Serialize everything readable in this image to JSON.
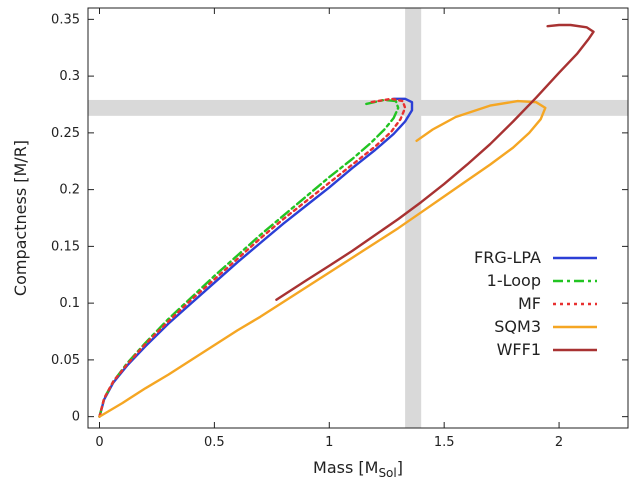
{
  "chart_data": {
    "type": "line",
    "xlabel": "Mass [M",
    "xlabel_sub": "Sol",
    "xlabel_end": "]",
    "ylabel": "Compactness [M/R]",
    "xlim": [
      -0.05,
      2.3
    ],
    "ylim": [
      -0.01,
      0.36
    ],
    "xticks": [
      {
        "v": 0,
        "label": "0"
      },
      {
        "v": 0.5,
        "label": "0.5"
      },
      {
        "v": 1,
        "label": "1"
      },
      {
        "v": 1.5,
        "label": "1.5"
      },
      {
        "v": 2,
        "label": "2"
      }
    ],
    "yticks": [
      {
        "v": 0,
        "label": "0"
      },
      {
        "v": 0.05,
        "label": "0.05"
      },
      {
        "v": 0.1,
        "label": "0.1"
      },
      {
        "v": 0.15,
        "label": "0.15"
      },
      {
        "v": 0.2,
        "label": "0.2"
      },
      {
        "v": 0.25,
        "label": "0.25"
      },
      {
        "v": 0.3,
        "label": "0.3"
      },
      {
        "v": 0.35,
        "label": "0.35"
      }
    ],
    "grid": false,
    "legend_position": "bottom-right",
    "bands": {
      "vertical": {
        "x": [
          1.33,
          1.4
        ],
        "color": "#d9d9d9"
      },
      "horizontal": {
        "y": [
          0.265,
          0.279
        ],
        "color": "#d9d9d9"
      }
    },
    "series": [
      {
        "name": "FRG-LPA",
        "color": "#2b3fd6",
        "dash": "solid",
        "points": [
          [
            0,
            0
          ],
          [
            0.02,
            0.015
          ],
          [
            0.06,
            0.03
          ],
          [
            0.12,
            0.045
          ],
          [
            0.2,
            0.062
          ],
          [
            0.3,
            0.082
          ],
          [
            0.4,
            0.1
          ],
          [
            0.5,
            0.118
          ],
          [
            0.6,
            0.136
          ],
          [
            0.7,
            0.153
          ],
          [
            0.8,
            0.17
          ],
          [
            0.9,
            0.186
          ],
          [
            1.0,
            0.202
          ],
          [
            1.1,
            0.219
          ],
          [
            1.2,
            0.235
          ],
          [
            1.28,
            0.249
          ],
          [
            1.33,
            0.26
          ],
          [
            1.36,
            0.27
          ],
          [
            1.36,
            0.277
          ],
          [
            1.33,
            0.28
          ],
          [
            1.28,
            0.28
          ]
        ]
      },
      {
        "name": "1-Loop",
        "color": "#22c422",
        "dash": "dashdot",
        "points": [
          [
            0,
            0
          ],
          [
            0.02,
            0.016
          ],
          [
            0.06,
            0.031
          ],
          [
            0.12,
            0.047
          ],
          [
            0.2,
            0.065
          ],
          [
            0.3,
            0.086
          ],
          [
            0.4,
            0.105
          ],
          [
            0.5,
            0.124
          ],
          [
            0.6,
            0.142
          ],
          [
            0.7,
            0.16
          ],
          [
            0.8,
            0.177
          ],
          [
            0.9,
            0.194
          ],
          [
            1.0,
            0.211
          ],
          [
            1.1,
            0.227
          ],
          [
            1.18,
            0.241
          ],
          [
            1.24,
            0.253
          ],
          [
            1.28,
            0.263
          ],
          [
            1.3,
            0.272
          ],
          [
            1.29,
            0.278
          ],
          [
            1.24,
            0.279
          ],
          [
            1.15,
            0.275
          ]
        ]
      },
      {
        "name": "MF",
        "color": "#e83030",
        "dash": "dotted",
        "points": [
          [
            0,
            0
          ],
          [
            0.02,
            0.016
          ],
          [
            0.06,
            0.031
          ],
          [
            0.12,
            0.046
          ],
          [
            0.2,
            0.064
          ],
          [
            0.3,
            0.084
          ],
          [
            0.4,
            0.103
          ],
          [
            0.5,
            0.121
          ],
          [
            0.6,
            0.139
          ],
          [
            0.7,
            0.157
          ],
          [
            0.8,
            0.174
          ],
          [
            0.9,
            0.19
          ],
          [
            1.0,
            0.206
          ],
          [
            1.1,
            0.222
          ],
          [
            1.2,
            0.238
          ],
          [
            1.27,
            0.251
          ],
          [
            1.31,
            0.262
          ],
          [
            1.33,
            0.272
          ],
          [
            1.32,
            0.278
          ],
          [
            1.27,
            0.28
          ],
          [
            1.18,
            0.277
          ]
        ]
      },
      {
        "name": "SQM3",
        "color": "#f5a623",
        "dash": "solid",
        "points": [
          [
            0,
            0
          ],
          [
            0.1,
            0.012
          ],
          [
            0.2,
            0.025
          ],
          [
            0.3,
            0.037
          ],
          [
            0.4,
            0.05
          ],
          [
            0.5,
            0.063
          ],
          [
            0.6,
            0.076
          ],
          [
            0.7,
            0.088
          ],
          [
            0.8,
            0.101
          ],
          [
            0.9,
            0.114
          ],
          [
            1.0,
            0.127
          ],
          [
            1.1,
            0.14
          ],
          [
            1.2,
            0.153
          ],
          [
            1.3,
            0.166
          ],
          [
            1.4,
            0.18
          ],
          [
            1.5,
            0.194
          ],
          [
            1.6,
            0.208
          ],
          [
            1.7,
            0.222
          ],
          [
            1.8,
            0.237
          ],
          [
            1.87,
            0.25
          ],
          [
            1.92,
            0.262
          ],
          [
            1.94,
            0.272
          ],
          [
            1.9,
            0.277
          ],
          [
            1.82,
            0.278
          ],
          [
            1.7,
            0.274
          ],
          [
            1.55,
            0.264
          ],
          [
            1.45,
            0.253
          ],
          [
            1.38,
            0.243
          ]
        ]
      },
      {
        "name": "WFF1",
        "color": "#a83232",
        "dash": "solid",
        "points": [
          [
            0.77,
            0.103
          ],
          [
            0.9,
            0.12
          ],
          [
            1.0,
            0.133
          ],
          [
            1.1,
            0.146
          ],
          [
            1.2,
            0.16
          ],
          [
            1.3,
            0.174
          ],
          [
            1.4,
            0.189
          ],
          [
            1.5,
            0.205
          ],
          [
            1.6,
            0.222
          ],
          [
            1.7,
            0.24
          ],
          [
            1.8,
            0.26
          ],
          [
            1.9,
            0.281
          ],
          [
            2.0,
            0.303
          ],
          [
            2.08,
            0.32
          ],
          [
            2.13,
            0.333
          ],
          [
            2.15,
            0.339
          ],
          [
            2.12,
            0.343
          ],
          [
            2.05,
            0.345
          ],
          [
            2.0,
            0.345
          ],
          [
            1.95,
            0.344
          ]
        ]
      }
    ]
  }
}
